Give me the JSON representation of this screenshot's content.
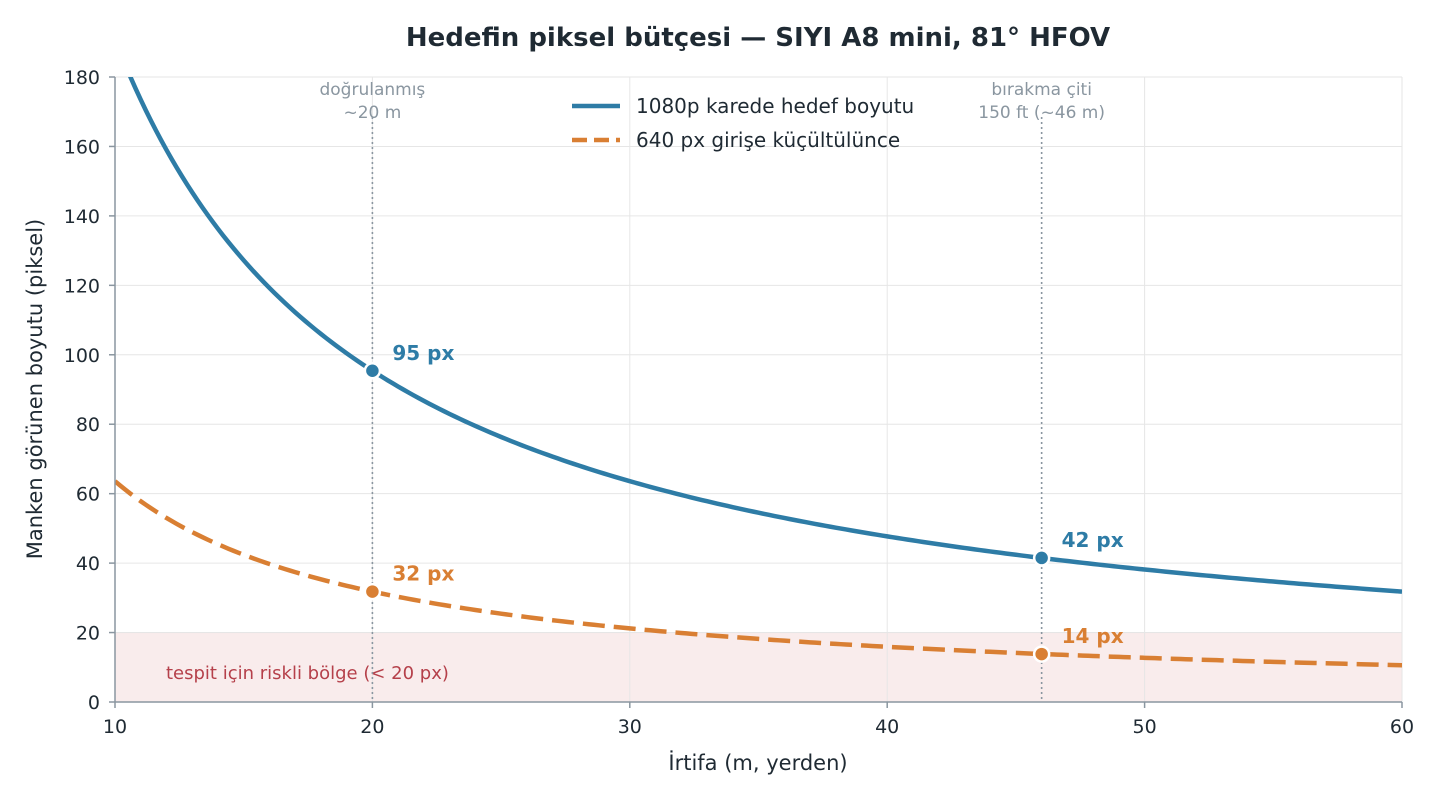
{
  "chart_data": {
    "type": "line",
    "title": "Hedefin piksel bütçesi — SIYI A8 mini, 81° HFOV",
    "xlabel": "İrtifa (m, yerden)",
    "ylabel": "Manken görünen boyutu (piksel)",
    "xlim": [
      10,
      60
    ],
    "ylim": [
      0,
      180
    ],
    "x_ticks": [
      10,
      20,
      30,
      40,
      50,
      60
    ],
    "y_ticks": [
      0,
      20,
      40,
      60,
      80,
      100,
      120,
      140,
      160,
      180
    ],
    "grid": true,
    "legend_position": "top-center",
    "series": [
      {
        "name": "1080p karede hedef boyutu",
        "style": "solid",
        "color": "#2e7ca6",
        "model": "y = 1908 / x",
        "x": [
          10,
          15,
          20,
          25,
          30,
          35,
          40,
          45,
          50,
          55,
          60
        ],
        "values": [
          190.8,
          127.2,
          95.4,
          76.3,
          63.6,
          54.5,
          47.7,
          42.4,
          38.2,
          34.7,
          31.8
        ]
      },
      {
        "name": "640 px girişe küçültülünce",
        "style": "dashed",
        "color": "#d97f33",
        "model": "y = 636 / x",
        "x": [
          10,
          15,
          20,
          25,
          30,
          35,
          40,
          45,
          50,
          55,
          60
        ],
        "values": [
          63.6,
          42.4,
          31.8,
          25.4,
          21.2,
          18.2,
          15.9,
          14.1,
          12.7,
          11.6,
          10.6
        ]
      }
    ],
    "reference_lines": [
      {
        "x": 20,
        "label_line1": "doğrulanmış",
        "label_line2": "~20 m"
      },
      {
        "x": 46,
        "label_line1": "bırakma çiti",
        "label_line2": "150 ft (~46 m)"
      }
    ],
    "highlighted_points": [
      {
        "series": 0,
        "x": 20,
        "y": 95.4,
        "label": "95 px"
      },
      {
        "series": 1,
        "x": 20,
        "y": 31.8,
        "label": "32 px"
      },
      {
        "series": 0,
        "x": 46,
        "y": 41.5,
        "label": "42 px"
      },
      {
        "series": 1,
        "x": 46,
        "y": 13.8,
        "label": "14 px"
      }
    ],
    "risk_zone": {
      "y_max": 20,
      "label": "tespit için riskli bölge (< 20 px)",
      "color": "#f9ecec"
    }
  }
}
